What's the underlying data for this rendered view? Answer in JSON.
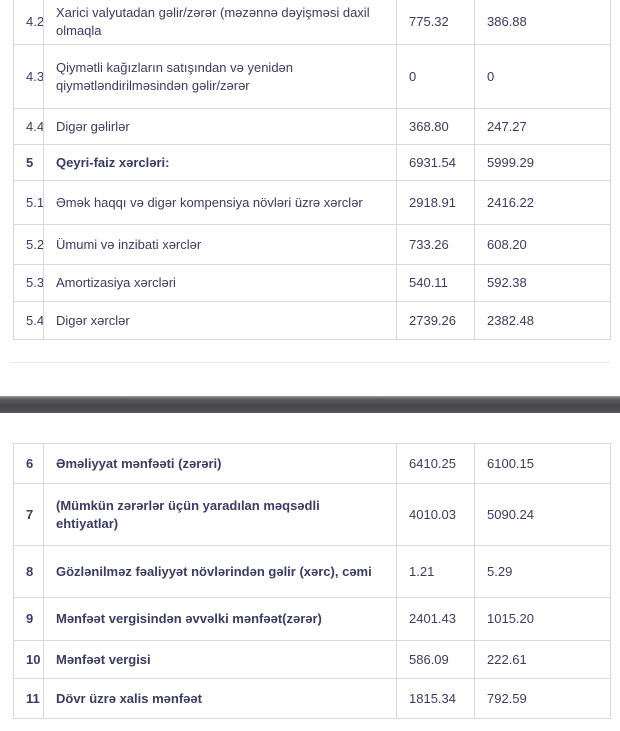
{
  "colors": {
    "text": "#3b3b63",
    "border": "#d9d9d9",
    "divider_dark": "#47474c",
    "background": "#ffffff"
  },
  "upper_table": {
    "rows": [
      {
        "no": "4.2",
        "label": "Xarici valyutadan gəlir/zərər (məzənnə dəyişməsi daxil olmaqla",
        "value1": "775.32",
        "value2": "386.88",
        "bold": false
      },
      {
        "no": "4.3",
        "label": "Qiymətli kağızların satışından və yenidən qiymətləndirilməsindən gəlir/zərər",
        "value1": "0",
        "value2": "0",
        "bold": false
      },
      {
        "no": "4.4",
        "label": "Digər gəlirlər",
        "value1": "368.80",
        "value2": "247.27",
        "bold": false
      },
      {
        "no": "5",
        "label": "Qeyri-faiz xərcləri:",
        "value1": "6931.54",
        "value2": "5999.29",
        "bold": true
      },
      {
        "no": "5.1",
        "label": "Əmək haqqı və digər kompensiya növləri üzrə xərclər",
        "value1": "2918.91",
        "value2": "2416.22",
        "bold": false
      },
      {
        "no": "5.2",
        "label": "Ümumi və inzibati xərclər",
        "value1": "733.26",
        "value2": "608.20",
        "bold": false
      },
      {
        "no": "5.3",
        "label": "Amortizasiya xərcləri",
        "value1": "540.11",
        "value2": "592.38",
        "bold": false
      },
      {
        "no": "5.4",
        "label": "Digər xərclər",
        "value1": "2739.26",
        "value2": "2382.48",
        "bold": false
      }
    ]
  },
  "lower_table": {
    "rows": [
      {
        "no": "6",
        "label": "Əməliyyat mənfəəti (zərəri)",
        "value1": "6410.25",
        "value2": "6100.15",
        "bold": true
      },
      {
        "no": "7",
        "label": "(Mümkün zərərlər üçün yaradılan məqsədli ehtiyatlar)",
        "value1": "4010.03",
        "value2": "5090.24",
        "bold": true
      },
      {
        "no": "8",
        "label": "Gözlənilməz fəaliyyət növlərindən gəlir (xərc), cəmi",
        "value1": "1.21",
        "value2": "5.29",
        "bold": true
      },
      {
        "no": "9",
        "label": "Mənfəət vergisindən əvvəlki mənfəət(zərər)",
        "value1": "2401.43",
        "value2": "1015.20",
        "bold": true
      },
      {
        "no": "10",
        "label": "Mənfəət vergisi",
        "value1": "586.09",
        "value2": "222.61",
        "bold": true
      },
      {
        "no": "11",
        "label": "Dövr üzrə xalis mənfəət",
        "value1": "1815.34",
        "value2": "792.59",
        "bold": true
      }
    ]
  }
}
